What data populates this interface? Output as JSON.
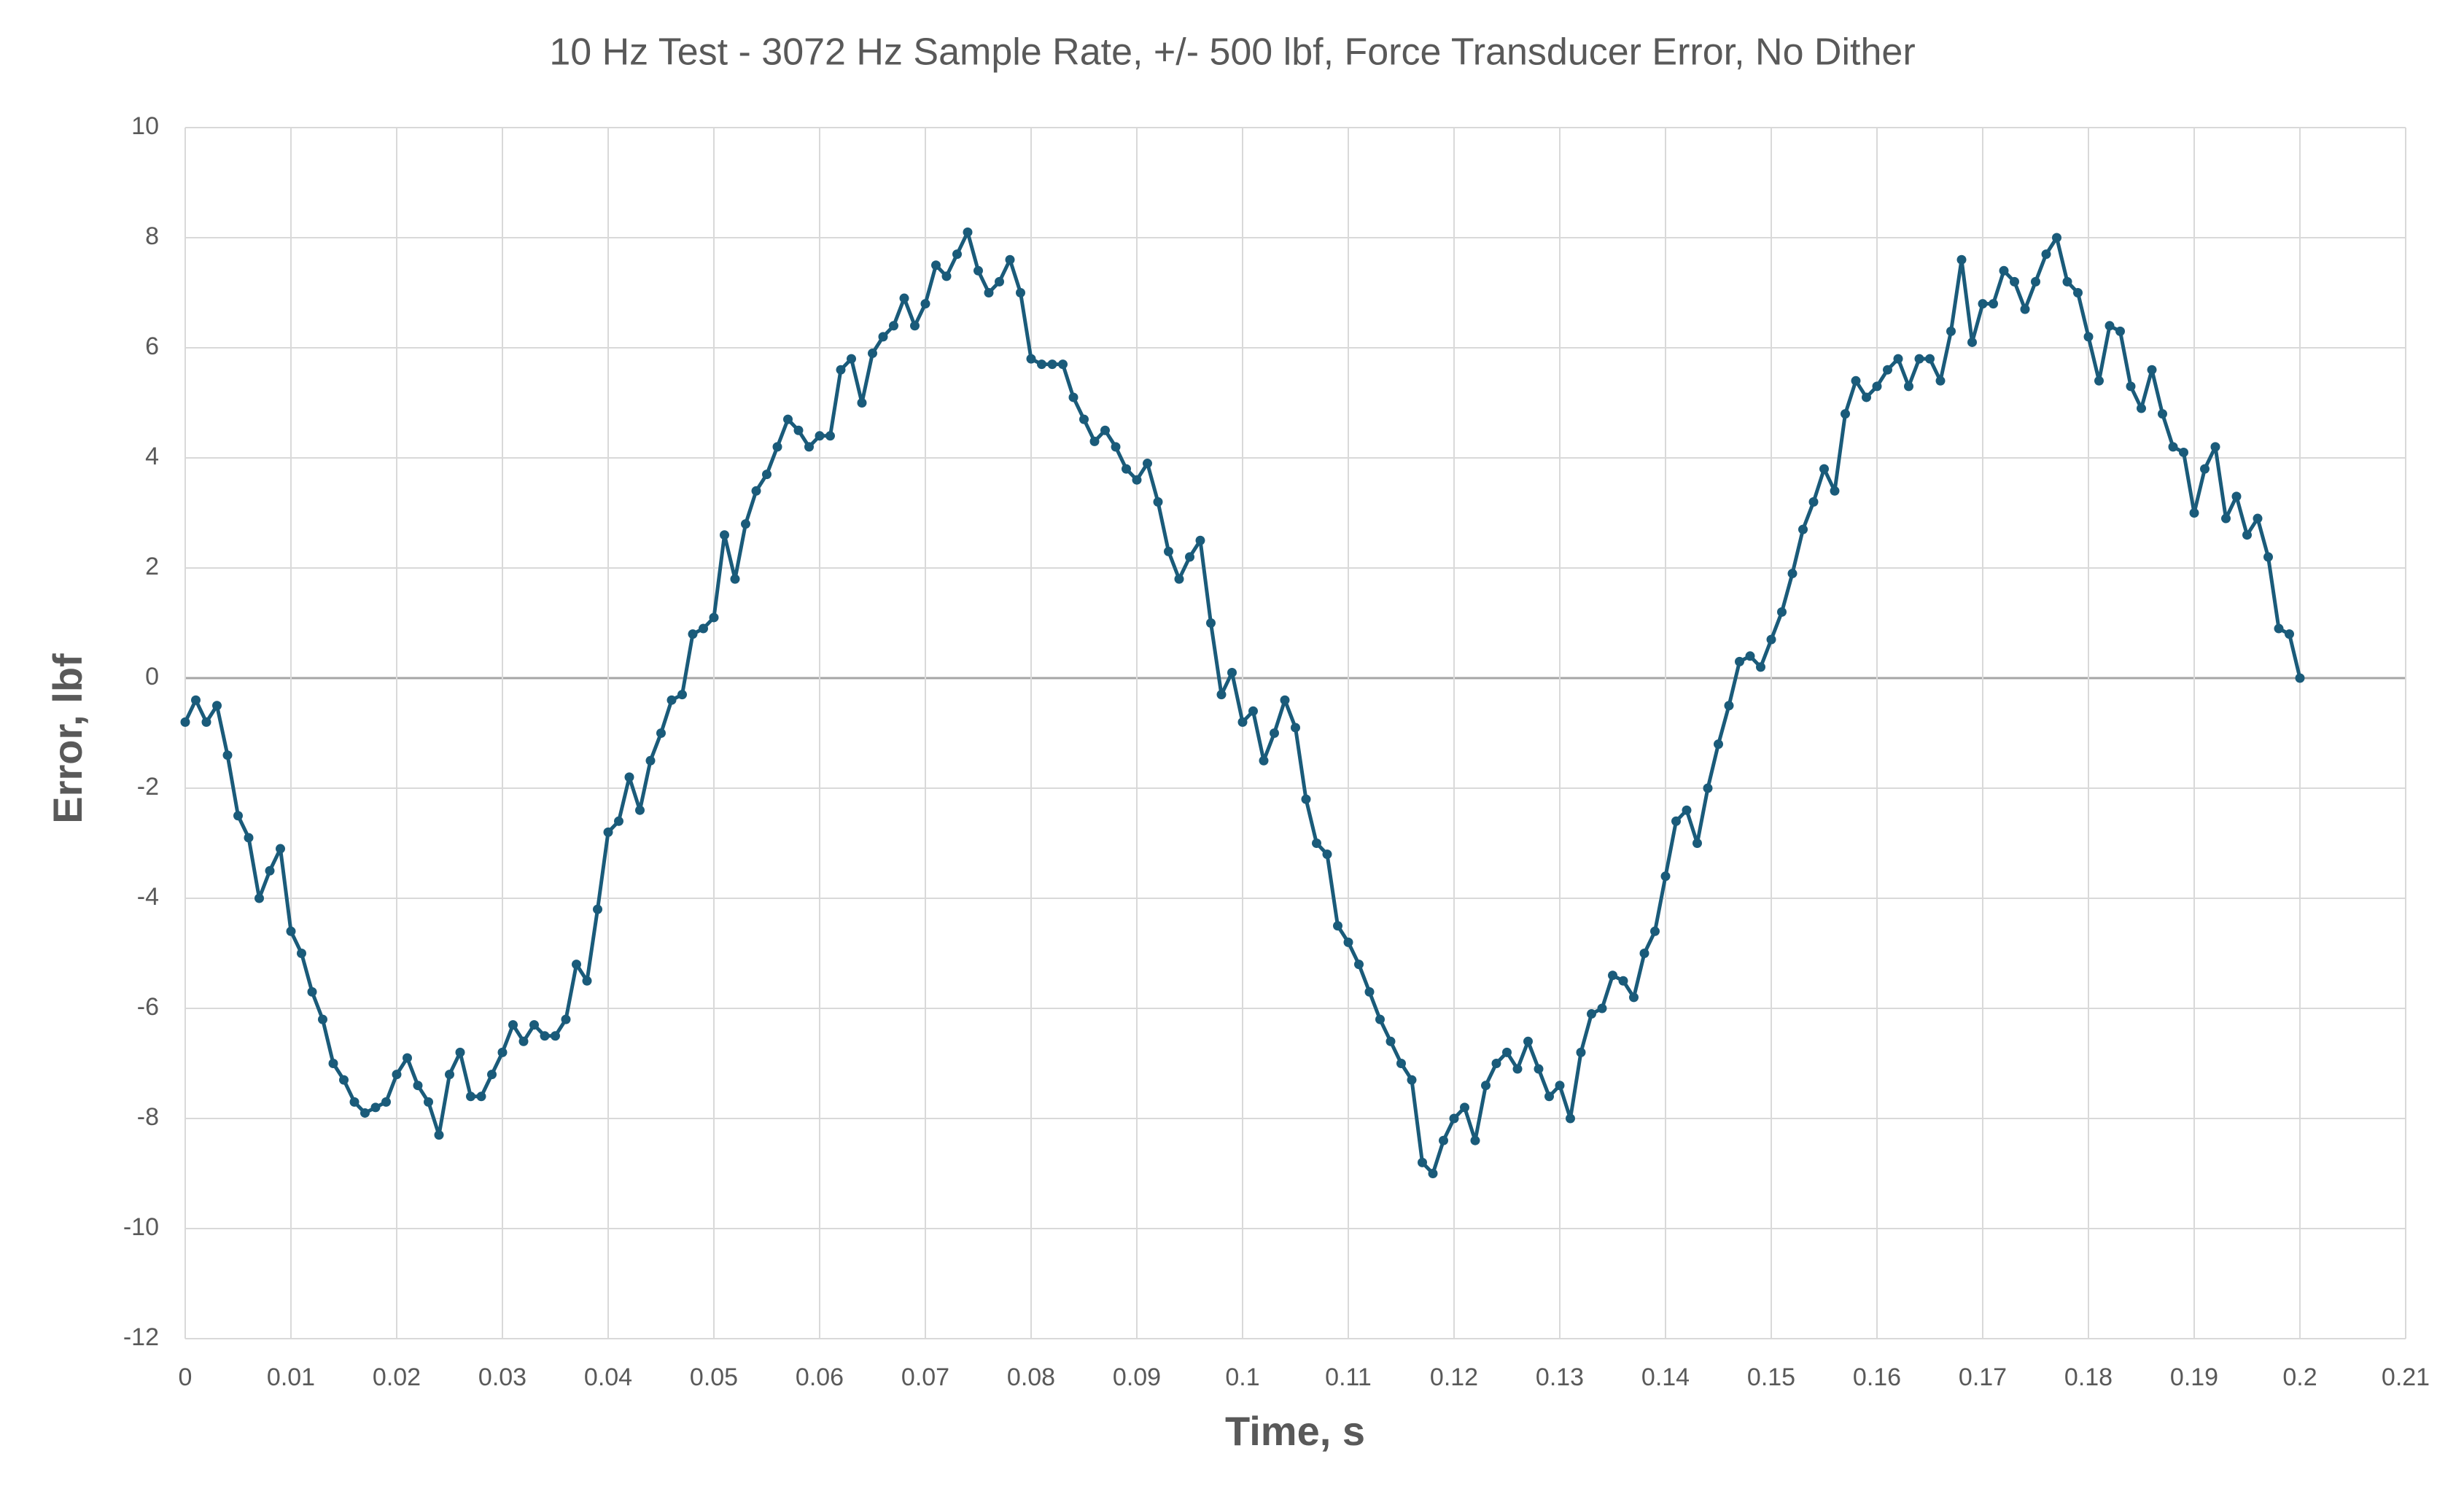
{
  "chart_data": {
    "type": "line",
    "title": "10 Hz Test - 3072 Hz Sample Rate, +/- 500 lbf, Force Transducer Error, No Dither",
    "x_label": "Time, s",
    "y_label": "Error, lbf",
    "color": "#1a5b7a",
    "grid": true,
    "xlim": [
      0,
      0.21
    ],
    "ylim": [
      -12,
      10
    ],
    "xticks": [
      0,
      0.01,
      0.02,
      0.03,
      0.04,
      0.05,
      0.06,
      0.07,
      0.08,
      0.09,
      0.1,
      0.11,
      0.12,
      0.13,
      0.14,
      0.15,
      0.16,
      0.17,
      0.18,
      0.19,
      0.2,
      0.21
    ],
    "yticks": [
      -12,
      -10,
      -8,
      -6,
      -4,
      -2,
      0,
      2,
      4,
      6,
      8,
      10
    ],
    "x": [
      0,
      0.001,
      0.002,
      0.003,
      0.004,
      0.005,
      0.006,
      0.007,
      0.008,
      0.009,
      0.01,
      0.011,
      0.012,
      0.013,
      0.014,
      0.015,
      0.016,
      0.017,
      0.018,
      0.019,
      0.02,
      0.021,
      0.022,
      0.023,
      0.024,
      0.025,
      0.026,
      0.027,
      0.028,
      0.029,
      0.03,
      0.031,
      0.032,
      0.033,
      0.034,
      0.035,
      0.036,
      0.037,
      0.038,
      0.039,
      0.04,
      0.041,
      0.042,
      0.043,
      0.044,
      0.045,
      0.046,
      0.047,
      0.048,
      0.049,
      0.05,
      0.051,
      0.052,
      0.053,
      0.054,
      0.055,
      0.056,
      0.057,
      0.058,
      0.059,
      0.06,
      0.061,
      0.062,
      0.063,
      0.064,
      0.065,
      0.066,
      0.067,
      0.068,
      0.069,
      0.07,
      0.071,
      0.072,
      0.073,
      0.074,
      0.075,
      0.076,
      0.077,
      0.078,
      0.079,
      0.08,
      0.081,
      0.082,
      0.083,
      0.084,
      0.085,
      0.086,
      0.087,
      0.088,
      0.089,
      0.09,
      0.091,
      0.092,
      0.093,
      0.094,
      0.095,
      0.096,
      0.097,
      0.098,
      0.099,
      0.1,
      0.101,
      0.102,
      0.103,
      0.104,
      0.105,
      0.106,
      0.107,
      0.108,
      0.109,
      0.11,
      0.111,
      0.112,
      0.113,
      0.114,
      0.115,
      0.116,
      0.117,
      0.118,
      0.119,
      0.12,
      0.121,
      0.122,
      0.123,
      0.124,
      0.125,
      0.126,
      0.127,
      0.128,
      0.129,
      0.13,
      0.131,
      0.132,
      0.133,
      0.134,
      0.135,
      0.136,
      0.137,
      0.138,
      0.139,
      0.14,
      0.141,
      0.142,
      0.143,
      0.144,
      0.145,
      0.146,
      0.147,
      0.148,
      0.149,
      0.15,
      0.151,
      0.152,
      0.153,
      0.154,
      0.155,
      0.156,
      0.157,
      0.158,
      0.159,
      0.16,
      0.161,
      0.162,
      0.163,
      0.164,
      0.165,
      0.166,
      0.167,
      0.168,
      0.169,
      0.17,
      0.171,
      0.172,
      0.173,
      0.174,
      0.175,
      0.176,
      0.177,
      0.178,
      0.179,
      0.18,
      0.181,
      0.182,
      0.183,
      0.184,
      0.185,
      0.186,
      0.187,
      0.188,
      0.189,
      0.19,
      0.191,
      0.192,
      0.193,
      0.194,
      0.195,
      0.196,
      0.197,
      0.198,
      0.199,
      0.2
    ],
    "values": [
      -0.8,
      -0.4,
      -0.8,
      -0.5,
      -1.4,
      -2.5,
      -2.9,
      -4.0,
      -3.5,
      -3.1,
      -4.6,
      -5.0,
      -5.7,
      -6.2,
      -7.0,
      -7.3,
      -7.7,
      -7.9,
      -7.8,
      -7.7,
      -7.2,
      -6.9,
      -7.4,
      -7.7,
      -8.3,
      -7.2,
      -6.8,
      -7.6,
      -7.6,
      -7.2,
      -6.8,
      -6.3,
      -6.6,
      -6.3,
      -6.5,
      -6.5,
      -6.2,
      -5.2,
      -5.5,
      -4.2,
      -2.8,
      -2.6,
      -1.8,
      -2.4,
      -1.5,
      -1.0,
      -0.4,
      -0.3,
      0.8,
      0.9,
      1.1,
      2.6,
      1.8,
      2.8,
      3.4,
      3.7,
      4.2,
      4.7,
      4.5,
      4.2,
      4.4,
      4.4,
      5.6,
      5.8,
      5.0,
      5.9,
      6.2,
      6.4,
      6.9,
      6.4,
      6.8,
      7.5,
      7.3,
      7.7,
      8.1,
      7.4,
      7.0,
      7.2,
      7.6,
      7.0,
      5.8,
      5.7,
      5.7,
      5.7,
      5.1,
      4.7,
      4.3,
      4.5,
      4.2,
      3.8,
      3.6,
      3.9,
      3.2,
      2.3,
      1.8,
      2.2,
      2.5,
      1.0,
      -0.3,
      0.1,
      -0.8,
      -0.6,
      -1.5,
      -1.0,
      -0.4,
      -0.9,
      -2.2,
      -3.0,
      -3.2,
      -4.5,
      -4.8,
      -5.2,
      -5.7,
      -6.2,
      -6.6,
      -7.0,
      -7.3,
      -8.8,
      -9.0,
      -8.4,
      -8.0,
      -7.8,
      -8.4,
      -7.4,
      -7.0,
      -6.8,
      -7.1,
      -6.6,
      -7.1,
      -7.6,
      -7.4,
      -8.0,
      -6.8,
      -6.1,
      -6.0,
      -5.4,
      -5.5,
      -5.8,
      -5.0,
      -4.6,
      -3.6,
      -2.6,
      -2.4,
      -3.0,
      -2.0,
      -1.2,
      -0.5,
      0.3,
      0.4,
      0.2,
      0.7,
      1.2,
      1.9,
      2.7,
      3.2,
      3.8,
      3.4,
      4.8,
      5.4,
      5.1,
      5.3,
      5.6,
      5.8,
      5.3,
      5.8,
      5.8,
      5.4,
      6.3,
      7.6,
      6.1,
      6.8,
      6.8,
      7.4,
      7.2,
      6.7,
      7.2,
      7.7,
      8.0,
      7.2,
      7.0,
      6.2,
      5.4,
      6.4,
      6.3,
      5.3,
      4.9,
      5.6,
      4.8,
      4.2,
      4.1,
      3.0,
      3.8,
      4.2,
      2.9,
      3.3,
      2.6,
      2.9,
      2.2,
      0.9,
      0.8,
      0.0
    ]
  }
}
